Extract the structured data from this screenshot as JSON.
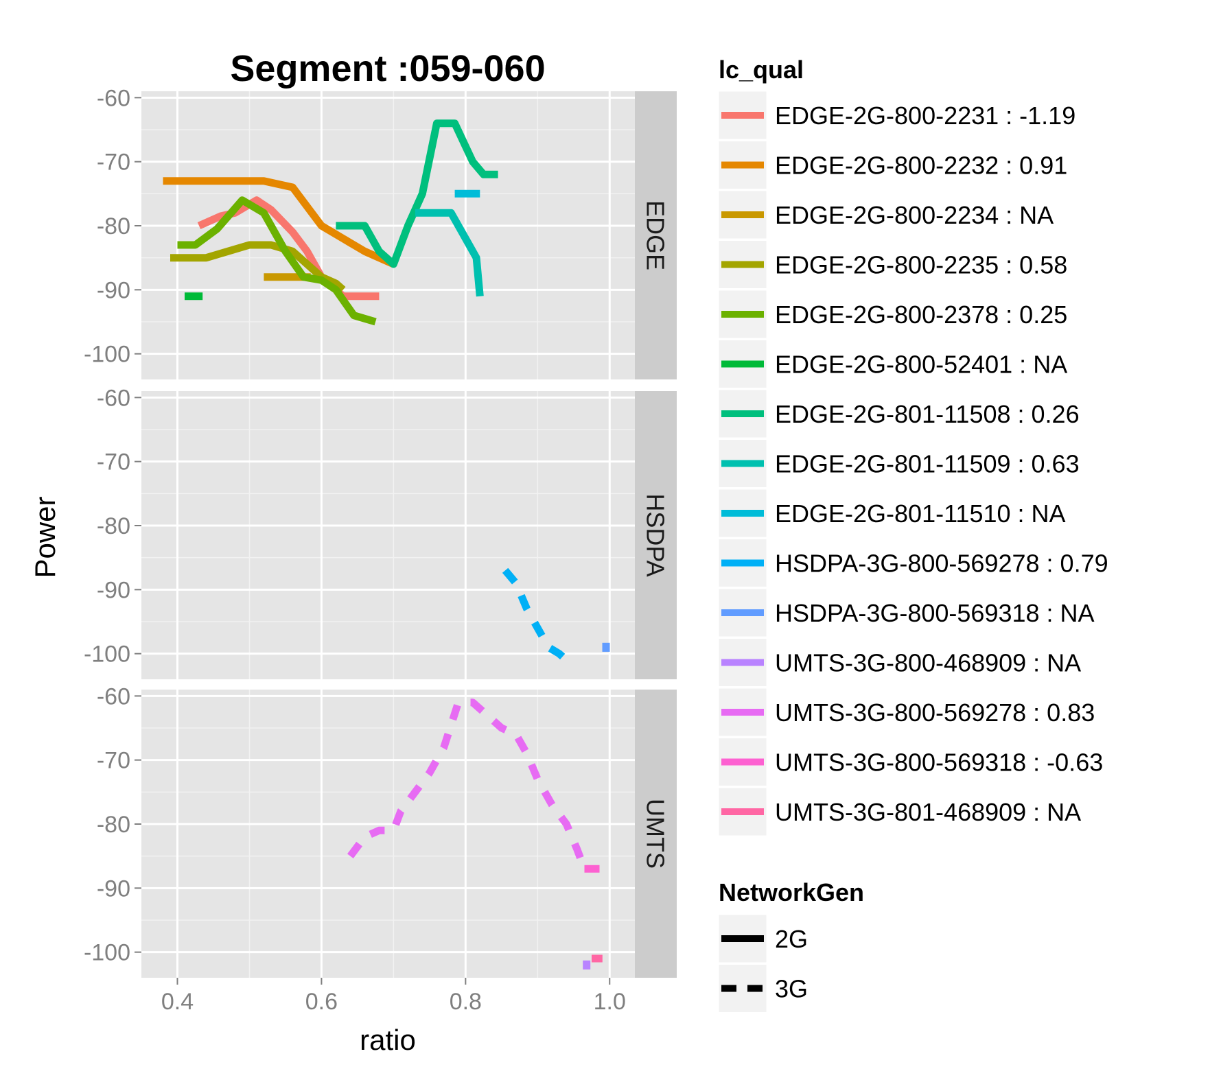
{
  "chart_data": {
    "type": "line",
    "title": "Segment :059-060",
    "xlabel": "ratio",
    "ylabel": "Power",
    "xlim": [
      0.35,
      1.035
    ],
    "ylim": [
      -104,
      -59
    ],
    "x_ticks": [
      "0.4",
      "0.6",
      "0.8",
      "1.0"
    ],
    "x_tick_values": [
      0.4,
      0.6,
      0.8,
      1.0
    ],
    "y_ticks": [
      "-60",
      "-70",
      "-80",
      "-90",
      "-100"
    ],
    "y_tick_values": [
      -60,
      -70,
      -80,
      -90,
      -100
    ],
    "facets": [
      "EDGE",
      "HSDPA",
      "UMTS"
    ],
    "grid": true,
    "legend_position": "right",
    "legend_colour": {
      "title": "lc_qual",
      "items": [
        {
          "label": "EDGE-2G-800-2231 : -1.19",
          "color": "#F8766D"
        },
        {
          "label": "EDGE-2G-800-2232 : 0.91",
          "color": "#E58700"
        },
        {
          "label": "EDGE-2G-800-2234 : NA",
          "color": "#C99800"
        },
        {
          "label": "EDGE-2G-800-2235 : 0.58",
          "color": "#A3A500"
        },
        {
          "label": "EDGE-2G-800-2378 : 0.25",
          "color": "#6BB100"
        },
        {
          "label": "EDGE-2G-800-52401 : NA",
          "color": "#00BA38"
        },
        {
          "label": "EDGE-2G-801-11508 : 0.26",
          "color": "#00BF7D"
        },
        {
          "label": "EDGE-2G-801-11509 : 0.63",
          "color": "#00C0AF"
        },
        {
          "label": "EDGE-2G-801-11510 : NA",
          "color": "#00BCD8"
        },
        {
          "label": "HSDPA-3G-800-569278 : 0.79",
          "color": "#00B0F6"
        },
        {
          "label": "HSDPA-3G-800-569318 : NA",
          "color": "#619CFF"
        },
        {
          "label": "UMTS-3G-800-468909 : NA",
          "color": "#B983FF"
        },
        {
          "label": "UMTS-3G-800-569278 : 0.83",
          "color": "#E76BF3"
        },
        {
          "label": "UMTS-3G-800-569318 : -0.63",
          "color": "#FD61D1"
        },
        {
          "label": "UMTS-3G-801-468909 : NA",
          "color": "#FF67A4"
        }
      ]
    },
    "legend_linetype": {
      "title": "NetworkGen",
      "items": [
        {
          "label": "2G",
          "dash": "solid"
        },
        {
          "label": "3G",
          "dash": "dashed"
        }
      ]
    },
    "series": [
      {
        "facet": "EDGE",
        "color_index": 0,
        "linetype": "2G",
        "points": [
          [
            0.43,
            -80
          ],
          [
            0.46,
            -78.5
          ],
          [
            0.48,
            -78
          ],
          [
            0.51,
            -76
          ],
          [
            0.53,
            -77.5
          ],
          [
            0.56,
            -81
          ],
          [
            0.58,
            -84
          ],
          [
            0.6,
            -88
          ],
          [
            0.63,
            -91
          ],
          [
            0.65,
            -91
          ],
          [
            0.68,
            -91
          ]
        ]
      },
      {
        "facet": "EDGE",
        "color_index": 1,
        "linetype": "2G",
        "points": [
          [
            0.38,
            -73
          ],
          [
            0.42,
            -73
          ],
          [
            0.46,
            -73
          ],
          [
            0.5,
            -73
          ],
          [
            0.52,
            -73
          ],
          [
            0.56,
            -74
          ],
          [
            0.6,
            -80
          ],
          [
            0.63,
            -82
          ],
          [
            0.66,
            -84
          ],
          [
            0.7,
            -86
          ]
        ]
      },
      {
        "facet": "EDGE",
        "color_index": 2,
        "linetype": "2G",
        "points": [
          [
            0.52,
            -88
          ],
          [
            0.585,
            -88
          ]
        ]
      },
      {
        "facet": "EDGE",
        "color_index": 3,
        "linetype": "2G",
        "points": [
          [
            0.39,
            -85
          ],
          [
            0.44,
            -85
          ],
          [
            0.47,
            -84
          ],
          [
            0.5,
            -83
          ],
          [
            0.53,
            -83
          ],
          [
            0.56,
            -84
          ],
          [
            0.58,
            -86
          ],
          [
            0.6,
            -88
          ],
          [
            0.62,
            -89
          ],
          [
            0.63,
            -90
          ]
        ]
      },
      {
        "facet": "EDGE",
        "color_index": 4,
        "linetype": "2G",
        "points": [
          [
            0.4,
            -83
          ],
          [
            0.425,
            -83
          ],
          [
            0.455,
            -80.5
          ],
          [
            0.49,
            -76
          ],
          [
            0.52,
            -78
          ],
          [
            0.55,
            -84
          ],
          [
            0.575,
            -88
          ],
          [
            0.6,
            -88.5
          ],
          [
            0.62,
            -90
          ],
          [
            0.645,
            -94
          ],
          [
            0.675,
            -95
          ]
        ]
      },
      {
        "facet": "EDGE",
        "color_index": 5,
        "linetype": "2G",
        "points": [
          [
            0.41,
            -91
          ],
          [
            0.435,
            -91
          ]
        ]
      },
      {
        "facet": "EDGE",
        "color_index": 6,
        "linetype": "2G",
        "points": [
          [
            0.62,
            -80
          ],
          [
            0.66,
            -80
          ],
          [
            0.68,
            -84
          ],
          [
            0.7,
            -86
          ],
          [
            0.72,
            -80
          ],
          [
            0.74,
            -75
          ],
          [
            0.76,
            -64
          ],
          [
            0.785,
            -64
          ],
          [
            0.81,
            -70
          ],
          [
            0.825,
            -72
          ],
          [
            0.845,
            -72
          ]
        ]
      },
      {
        "facet": "EDGE",
        "color_index": 7,
        "linetype": "2G",
        "points": [
          [
            0.73,
            -78
          ],
          [
            0.78,
            -78
          ],
          [
            0.795,
            -81
          ],
          [
            0.805,
            -83
          ],
          [
            0.815,
            -85
          ],
          [
            0.82,
            -91
          ]
        ]
      },
      {
        "facet": "EDGE",
        "color_index": 8,
        "linetype": "2G",
        "points": [
          [
            0.785,
            -75
          ],
          [
            0.82,
            -75
          ]
        ]
      },
      {
        "facet": "HSDPA",
        "color_index": 9,
        "linetype": "3G",
        "points": [
          [
            0.855,
            -87
          ],
          [
            0.87,
            -89
          ],
          [
            0.885,
            -93
          ],
          [
            0.9,
            -96
          ],
          [
            0.915,
            -99
          ],
          [
            0.93,
            -100
          ],
          [
            0.94,
            -101
          ],
          [
            0.95,
            -101
          ]
        ]
      },
      {
        "facet": "HSDPA",
        "color_index": 10,
        "linetype": "3G",
        "points": [
          [
            0.995,
            -98.3
          ],
          [
            0.995,
            -99.7
          ]
        ]
      },
      {
        "facet": "UMTS",
        "color_index": 11,
        "linetype": "3G",
        "points": [
          [
            0.968,
            -101.3
          ],
          [
            0.968,
            -102.7
          ]
        ]
      },
      {
        "facet": "UMTS",
        "color_index": 12,
        "linetype": "3G",
        "points": [
          [
            0.64,
            -85
          ],
          [
            0.66,
            -82
          ],
          [
            0.68,
            -81
          ],
          [
            0.7,
            -81
          ],
          [
            0.71,
            -78
          ],
          [
            0.73,
            -75
          ],
          [
            0.75,
            -72
          ],
          [
            0.77,
            -68
          ],
          [
            0.79,
            -61
          ],
          [
            0.81,
            -61
          ],
          [
            0.83,
            -63
          ],
          [
            0.85,
            -65
          ],
          [
            0.87,
            -66
          ],
          [
            0.885,
            -69
          ],
          [
            0.9,
            -73
          ],
          [
            0.92,
            -77
          ],
          [
            0.94,
            -80
          ],
          [
            0.955,
            -84
          ],
          [
            0.965,
            -87
          ]
        ]
      },
      {
        "facet": "UMTS",
        "color_index": 13,
        "linetype": "3G",
        "points": [
          [
            0.965,
            -87
          ],
          [
            0.995,
            -87
          ]
        ]
      },
      {
        "facet": "UMTS",
        "color_index": 14,
        "linetype": "3G",
        "points": [
          [
            0.975,
            -101
          ],
          [
            0.99,
            -101
          ]
        ]
      }
    ]
  }
}
